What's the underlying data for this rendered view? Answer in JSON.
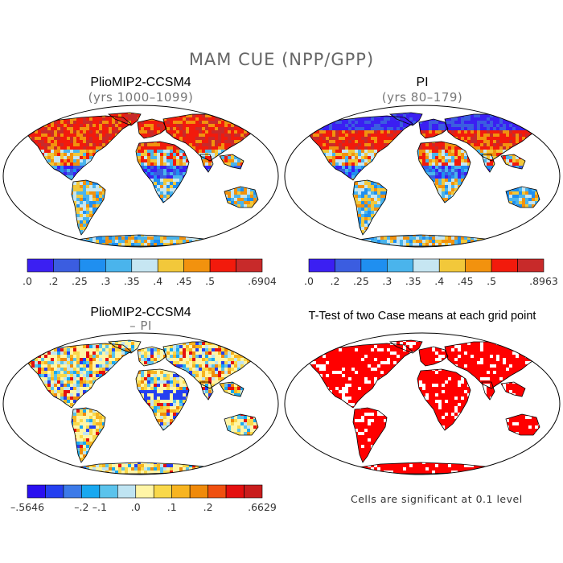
{
  "figure": {
    "title": "MAM CUE (NPP/GPP)"
  },
  "panels": [
    {
      "id": "pliomip",
      "title": "PlioMIP2-CCSM4",
      "subtitle": "(yrs 1000–1099)"
    },
    {
      "id": "pi",
      "title": "PI",
      "subtitle": "(yrs 80–179)"
    },
    {
      "id": "diff",
      "title": "PlioMIP2-CCSM4",
      "subtitle": "– PI"
    },
    {
      "id": "ttest",
      "title": "T-Test of two Case means at each grid point",
      "subtitle": ""
    }
  ],
  "colorbars": {
    "pliomip": {
      "colors": [
        "#3b1ff2",
        "#3b5de0",
        "#1f8ff0",
        "#4ab4ec",
        "#c6e6f2",
        "#f2c83a",
        "#f2920e",
        "#f21a0c",
        "#c82a2a"
      ],
      "labels": [
        ".0",
        ".2",
        ".25",
        ".3",
        ".35",
        ".4",
        ".45",
        ".5",
        ".6904"
      ]
    },
    "pi": {
      "colors": [
        "#3b1ff2",
        "#3b5de0",
        "#1f8ff0",
        "#4ab4ec",
        "#c6e6f2",
        "#f2c83a",
        "#f2920e",
        "#f21a0c",
        "#c82a2a"
      ],
      "labels": [
        ".0",
        ".2",
        ".25",
        ".3",
        ".35",
        ".4",
        ".45",
        ".5",
        ".8963"
      ]
    },
    "diff": {
      "colors": [
        "#2a10f0",
        "#2540f0",
        "#3c7ae8",
        "#19a8f0",
        "#5bc3ec",
        "#bfe4f2",
        "#fff5a6",
        "#f9d84a",
        "#f7b420",
        "#f08a0a",
        "#f05010",
        "#e41010",
        "#c91d1d"
      ],
      "labels": [
        "–.5646",
        "–.2",
        "–.1",
        ".0",
        ".1",
        ".2",
        ".6629"
      ]
    }
  },
  "ttest": {
    "significance_note": "Cells are significant at 0.1 level",
    "color": "#ff0000"
  },
  "colors": {
    "land_outline": "#000000",
    "map_border": "#000000"
  }
}
